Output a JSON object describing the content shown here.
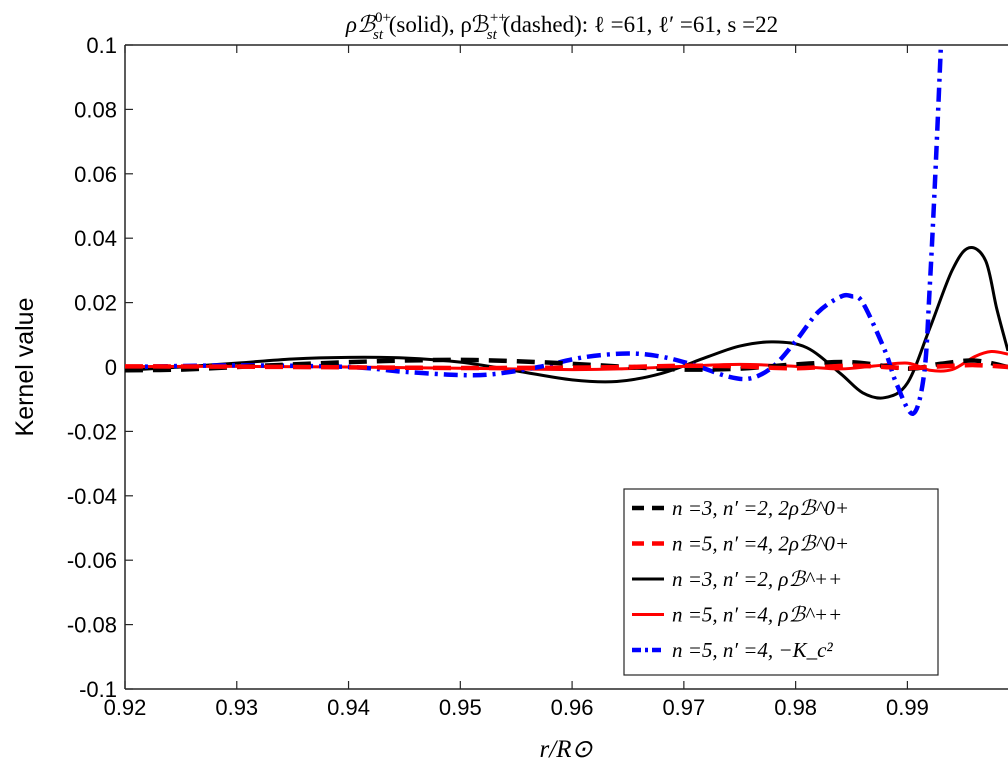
{
  "chart_data": {
    "type": "line",
    "title": "ρB_st^0+ (solid), ρB_st^++ (dashed): ℓ =61, ℓ′ =61, s =22",
    "title_parts": {
      "part1": "ρℬ",
      "part1_sup": "0+",
      "part1_sub": "st",
      "part2": " (solid), ρℬ",
      "part2_sup": "++",
      "part2_sub": "st",
      "part3": " (dashed): ℓ =61, ℓ′ =61, s =22"
    },
    "xlabel": "r/R⊙",
    "ylabel": "Kernel value",
    "xlim": [
      0.92,
      0.999
    ],
    "ylim": [
      -0.1,
      0.1
    ],
    "x_ticks": [
      "0.92",
      "0.93",
      "0.94",
      "0.95",
      "0.96",
      "0.97",
      "0.98",
      "0.99"
    ],
    "y_ticks": [
      "-0.1",
      "-0.08",
      "-0.06",
      "-0.04",
      "-0.02",
      "0",
      "0.02",
      "0.04",
      "0.06",
      "0.08",
      "0.1"
    ],
    "grid": false,
    "legend_position": "bottom-right",
    "series": [
      {
        "name": "n =3, n′ =2, 2ρℬ^0+",
        "color": "#000000",
        "style": "dashed",
        "x": [
          0.92,
          0.925,
          0.93,
          0.935,
          0.94,
          0.945,
          0.95,
          0.955,
          0.96,
          0.965,
          0.97,
          0.975,
          0.98,
          0.985,
          0.99,
          0.993,
          0.996,
          0.999
        ],
        "y": [
          -0.001,
          -0.0008,
          0.0,
          0.0008,
          0.0015,
          0.002,
          0.0022,
          0.0018,
          0.001,
          0.0,
          -0.0008,
          -0.0005,
          0.0008,
          0.0015,
          -0.0005,
          0.001,
          0.002,
          0.0
        ]
      },
      {
        "name": "n =5, n′ =4, 2ρℬ^0+",
        "color": "#ff0000",
        "style": "dashed",
        "x": [
          0.92,
          0.93,
          0.94,
          0.95,
          0.96,
          0.965,
          0.97,
          0.975,
          0.98,
          0.985,
          0.99,
          0.993,
          0.996,
          0.999
        ],
        "y": [
          0.0002,
          0.0001,
          -0.0001,
          -0.0003,
          -0.0002,
          0.0,
          0.0004,
          0.0002,
          -0.0004,
          0.0004,
          -0.0003,
          0.0002,
          0.0006,
          0.0
        ]
      },
      {
        "name": "n =3, n′ =2, ρℬ^++",
        "color": "#000000",
        "style": "solid",
        "x": [
          0.92,
          0.925,
          0.93,
          0.935,
          0.94,
          0.945,
          0.95,
          0.955,
          0.96,
          0.964,
          0.968,
          0.972,
          0.975,
          0.978,
          0.981,
          0.984,
          0.986,
          0.988,
          0.99,
          0.992,
          0.994,
          0.9955,
          0.997,
          0.998,
          0.999
        ],
        "y": [
          -0.001,
          0.0,
          0.0012,
          0.0025,
          0.003,
          0.0028,
          0.0015,
          -0.0012,
          -0.004,
          -0.0045,
          -0.002,
          0.003,
          0.0065,
          0.0078,
          0.006,
          -0.002,
          -0.008,
          -0.0095,
          -0.005,
          0.012,
          0.03,
          0.037,
          0.033,
          0.018,
          0.005
        ]
      },
      {
        "name": "n =5, n′ =4, ρℬ^++",
        "color": "#ff0000",
        "style": "solid",
        "x": [
          0.92,
          0.93,
          0.94,
          0.95,
          0.96,
          0.965,
          0.97,
          0.975,
          0.98,
          0.984,
          0.987,
          0.99,
          0.992,
          0.994,
          0.996,
          0.9975,
          0.999
        ],
        "y": [
          0.0001,
          0.0002,
          0.0,
          -0.0004,
          -0.0008,
          -0.0005,
          0.0002,
          0.0008,
          0.0002,
          -0.0006,
          0.0003,
          0.0012,
          -0.001,
          -0.0008,
          0.0032,
          0.0048,
          0.004
        ]
      },
      {
        "name": "n =5, n′ =4, −K_c²",
        "color": "#0000ff",
        "style": "dashdot",
        "x": [
          0.92,
          0.93,
          0.94,
          0.945,
          0.95,
          0.953,
          0.957,
          0.961,
          0.965,
          0.968,
          0.971,
          0.974,
          0.976,
          0.978,
          0.98,
          0.982,
          0.984,
          0.985,
          0.986,
          0.988,
          0.989,
          0.9905,
          0.9915,
          0.992,
          0.9925,
          0.993
        ],
        "y": [
          0.0,
          0.0005,
          0.0,
          -0.0015,
          -0.0025,
          -0.0022,
          0.0,
          0.003,
          0.0042,
          0.0032,
          0.0005,
          -0.003,
          -0.0035,
          0.0002,
          0.008,
          0.017,
          0.0218,
          0.022,
          0.02,
          0.005,
          -0.005,
          -0.0145,
          -0.002,
          0.025,
          0.06,
          0.1
        ]
      }
    ]
  }
}
